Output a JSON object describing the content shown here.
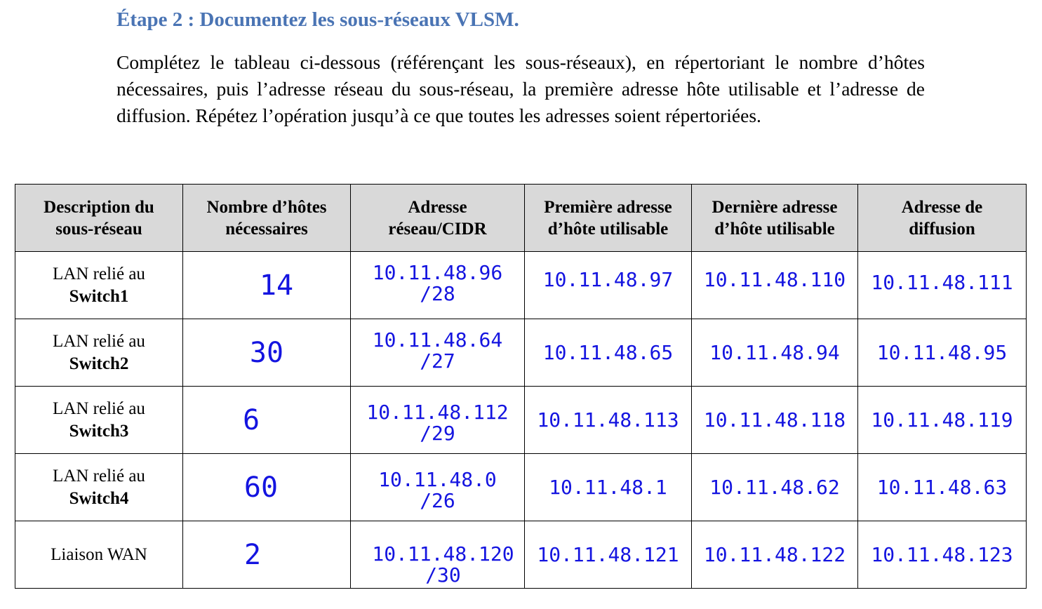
{
  "heading": "Étape 2 : Documentez les sous-réseaux VLSM.",
  "instructions": "Complétez le tableau ci-dessous (référençant les sous-réseaux), en répertoriant le nombre d’hôtes nécessaires, puis l’adresse réseau du sous-réseau, la première adresse hôte utilisable et l’adresse de diffusion. Répétez l’opération jusqu’à ce que toutes les adresses soient répertoriées.",
  "table": {
    "headers": {
      "description": [
        "Description du",
        "sous-réseau"
      ],
      "hosts": [
        "Nombre d’hôtes",
        "nécessaires"
      ],
      "network": [
        "Adresse",
        "réseau/CIDR"
      ],
      "first": [
        "Première adresse",
        "d’hôte utilisable"
      ],
      "last": [
        "Dernière adresse",
        "d’hôte utilisable"
      ],
      "broadcast": [
        "Adresse de",
        "diffusion"
      ]
    },
    "rows": [
      {
        "desc_prefix": "LAN relié au",
        "desc_bold": "Switch1",
        "hosts": "14",
        "network": "10.11.48.96",
        "cidr": "/28",
        "first": "10.11.48.97",
        "last": "10.11.48.110",
        "broadcast": "10.11.48.111"
      },
      {
        "desc_prefix": "LAN relié au",
        "desc_bold": "Switch2",
        "hosts": "30",
        "network": "10.11.48.64",
        "cidr": "/27",
        "first": "10.11.48.65",
        "last": "10.11.48.94",
        "broadcast": "10.11.48.95"
      },
      {
        "desc_prefix": "LAN relié au",
        "desc_bold": "Switch3",
        "hosts": "6",
        "network": "10.11.48.112",
        "cidr": "/29",
        "first": "10.11.48.113",
        "last": "10.11.48.118",
        "broadcast": "10.11.48.119"
      },
      {
        "desc_prefix": "LAN relié au",
        "desc_bold": "Switch4",
        "hosts": "60",
        "network": "10.11.48.0",
        "cidr": "/26",
        "first": "10.11.48.1",
        "last": "10.11.48.62",
        "broadcast": "10.11.48.63"
      },
      {
        "desc_prefix": "Liaison WAN",
        "desc_bold": "",
        "hosts": "2",
        "network": "10.11.48.120",
        "cidr": "/30",
        "first": "10.11.48.121",
        "last": "10.11.48.122",
        "broadcast": "10.11.48.123"
      }
    ]
  },
  "colors": {
    "heading": "#4a74b4",
    "handwriting": "#1414e0",
    "header_bg": "#d9d9d9"
  }
}
